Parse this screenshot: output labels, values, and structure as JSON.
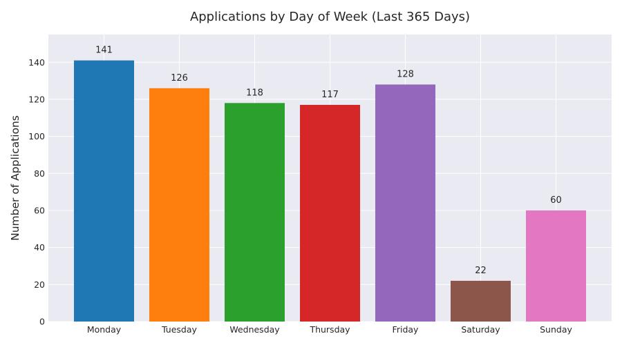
{
  "chart_data": {
    "type": "bar",
    "title": "Applications by Day of Week (Last 365 Days)",
    "xlabel": "",
    "ylabel": "Number of Applications",
    "categories": [
      "Monday",
      "Tuesday",
      "Wednesday",
      "Thursday",
      "Friday",
      "Saturday",
      "Sunday"
    ],
    "values": [
      141,
      126,
      118,
      117,
      128,
      22,
      60
    ],
    "data_labels": [
      "141",
      "126",
      "118",
      "117",
      "128",
      "22",
      "60"
    ],
    "colors": [
      "#1f77b4",
      "#ff7f0e",
      "#2ca02c",
      "#d62728",
      "#9467bd",
      "#8c564b",
      "#e377c2"
    ],
    "ylim": [
      0,
      155
    ],
    "yticks": [
      0,
      20,
      40,
      60,
      80,
      100,
      120,
      140
    ],
    "ytick_labels": [
      "0",
      "20",
      "40",
      "60",
      "80",
      "100",
      "120",
      "140"
    ],
    "grid": true,
    "style": "seaborn-darkgrid",
    "background_color": "#eaeaf2"
  }
}
